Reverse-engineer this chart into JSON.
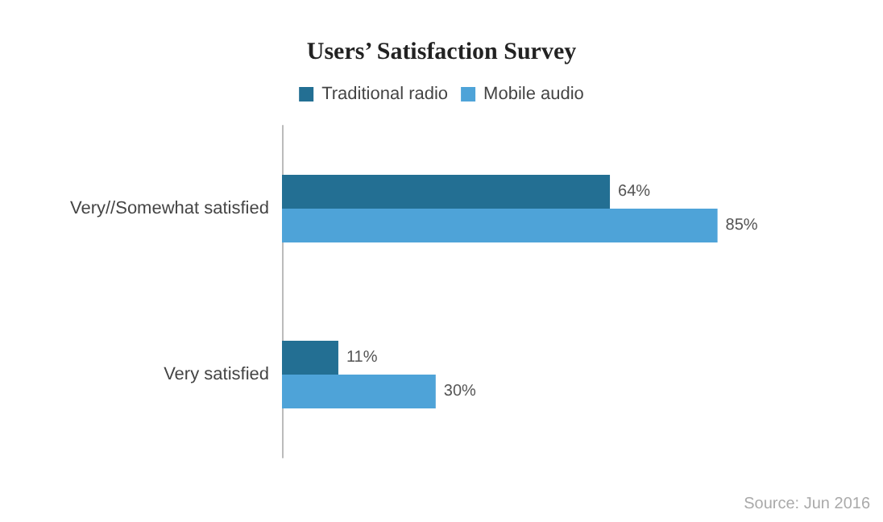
{
  "chart_data": {
    "type": "bar",
    "orientation": "horizontal",
    "title": "Users’ Satisfaction Survey",
    "categories": [
      "Very//Somewhat satisfied",
      "Very satisfied"
    ],
    "series": [
      {
        "name": "Traditional radio",
        "color": "#236f93",
        "values": [
          64,
          11
        ],
        "value_labels": [
          "64%",
          "11%"
        ]
      },
      {
        "name": "Mobile audio",
        "color": "#4ea3d8",
        "values": [
          85,
          30
        ],
        "value_labels": [
          "85%",
          "30%"
        ]
      }
    ],
    "legend": "top",
    "annotations": [
      "Source: Jun 2016"
    ]
  }
}
